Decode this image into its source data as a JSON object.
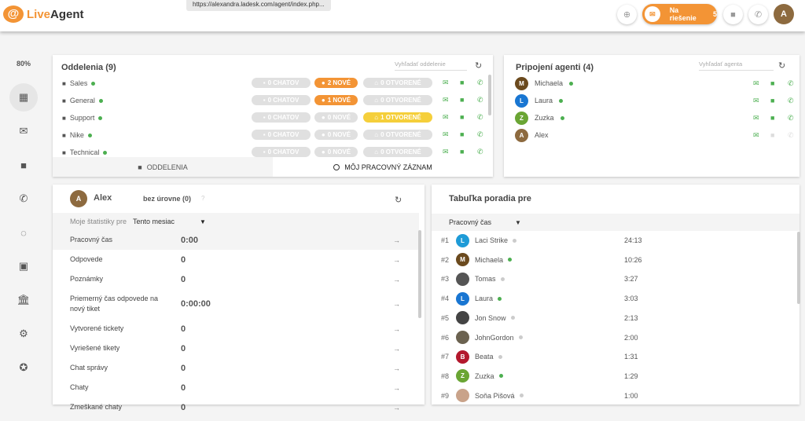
{
  "header": {
    "logo_text": "LiveAgent",
    "url_tooltip": "https://alexandra.ladesk.com/agent/index.php...",
    "pending_label": "Na riešenie",
    "pending_count": "5",
    "user_initial": "A",
    "accent": "#f39435"
  },
  "sidebar": {
    "zoom": "80%",
    "items": [
      {
        "icon": "dashboard-icon"
      },
      {
        "icon": "mail-icon"
      },
      {
        "icon": "chat-icon"
      },
      {
        "icon": "phone-icon"
      },
      {
        "icon": "reports-icon"
      },
      {
        "icon": "contacts-icon"
      },
      {
        "icon": "knowledgebase-icon"
      },
      {
        "icon": "settings-icon"
      },
      {
        "icon": "plugins-icon"
      }
    ]
  },
  "departments": {
    "title": "Oddelenia (9)",
    "search_placeholder": "Vyhľadať oddelenie",
    "rows": [
      {
        "name": "Sales",
        "chats": "0 CHATOV",
        "new": "2 NOVÉ",
        "new_active": true,
        "open": "0 OTVORENÉ",
        "open_active": false
      },
      {
        "name": "General",
        "chats": "0 CHATOV",
        "new": "1 NOVÉ",
        "new_active": true,
        "open": "0 OTVORENÉ",
        "open_active": false
      },
      {
        "name": "Support",
        "chats": "0 CHATOV",
        "new": "0 NOVÉ",
        "new_active": false,
        "open": "1 OTVORENÉ",
        "open_active": true
      },
      {
        "name": "Nike",
        "chats": "0 CHATOV",
        "new": "0 NOVÉ",
        "new_active": false,
        "open": "0 OTVORENÉ",
        "open_active": false
      },
      {
        "name": "Technical",
        "chats": "0 CHATOV",
        "new": "0 NOVÉ",
        "new_active": false,
        "open": "0 OTVORENÉ",
        "open_active": false
      }
    ],
    "tabs": [
      {
        "label": "ODDELENIA"
      },
      {
        "label": "MÔJ PRACOVNÝ ZÁZNAM"
      }
    ]
  },
  "agents": {
    "title": "Pripojení agenti (4)",
    "search_placeholder": "Vyhľadať agenta",
    "rows": [
      {
        "initial": "M",
        "name": "Michaela",
        "color": "#6b4a1e",
        "online": true
      },
      {
        "initial": "L",
        "name": "Laura",
        "color": "#1976d2",
        "online": true
      },
      {
        "initial": "Z",
        "name": "Zuzka",
        "color": "#6aa534",
        "online": true
      },
      {
        "initial": "A",
        "name": "Alex",
        "color": "#8d6a3f",
        "online": false
      }
    ]
  },
  "stats": {
    "agent_initial": "A",
    "agent_name": "Alex",
    "level": "bez úrovne (0)",
    "help": "?",
    "period_label": "Moje štatistiky pre",
    "period_value": "Tento mesiac",
    "rows": [
      {
        "label": "Pracovný čas",
        "value": "0:00"
      },
      {
        "label": "Odpovede",
        "value": "0"
      },
      {
        "label": "Poznámky",
        "value": "0"
      },
      {
        "label": "Priemerný čas odpovede na nový tiket",
        "value": "0:00:00"
      },
      {
        "label": "Vytvorené tickety",
        "value": "0"
      },
      {
        "label": "Vyriešené tikety",
        "value": "0"
      },
      {
        "label": "Chat správy",
        "value": "0"
      },
      {
        "label": "Chaty",
        "value": "0"
      },
      {
        "label": "Zmeškané chaty",
        "value": "0"
      }
    ]
  },
  "leaderboard": {
    "title": "Tabuľka poradia pre",
    "metric": "Pracovný čas",
    "rows": [
      {
        "rank": "#1",
        "initial": "L",
        "name": "Laci Strike",
        "color": "#1e9bd7",
        "online": false,
        "value": "24:13"
      },
      {
        "rank": "#2",
        "initial": "M",
        "name": "Michaela",
        "color": "#6b4a1e",
        "online": true,
        "value": "10:26"
      },
      {
        "rank": "#3",
        "initial": "",
        "name": "Tomas",
        "color": "#555555",
        "online": false,
        "value": "3:27"
      },
      {
        "rank": "#4",
        "initial": "L",
        "name": "Laura",
        "color": "#1976d2",
        "online": true,
        "value": "3:03"
      },
      {
        "rank": "#5",
        "initial": "",
        "name": "Jon Snow",
        "color": "#444444",
        "online": false,
        "value": "2:13"
      },
      {
        "rank": "#6",
        "initial": "",
        "name": "JohnGordon",
        "color": "#6b6250",
        "online": false,
        "value": "2:00"
      },
      {
        "rank": "#7",
        "initial": "B",
        "name": "Beata",
        "color": "#b3182d",
        "online": false,
        "value": "1:31"
      },
      {
        "rank": "#8",
        "initial": "Z",
        "name": "Zuzka",
        "color": "#6aa534",
        "online": true,
        "value": "1:29"
      },
      {
        "rank": "#9",
        "initial": "",
        "name": "Soňa Pišová",
        "color": "#c9a38a",
        "online": false,
        "value": "1:00"
      }
    ]
  }
}
